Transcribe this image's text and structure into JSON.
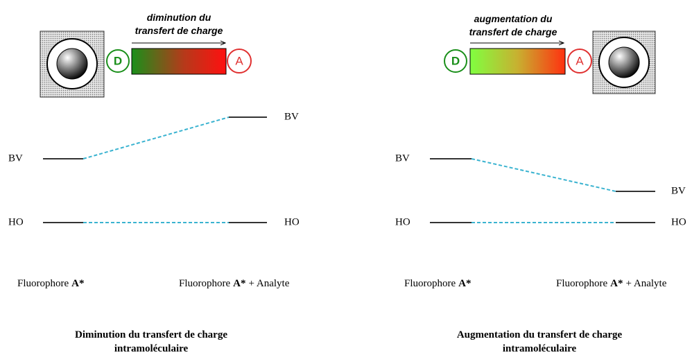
{
  "panels": [
    {
      "arrow_label": [
        "diminution du",
        "transfert de charge"
      ],
      "donor": "D",
      "acceptor": "A",
      "levels": {
        "left_bv": "BV",
        "right_bv": "BV",
        "left_ho": "HO",
        "right_ho": "HO"
      },
      "left_label": {
        "text": "Fluorophore",
        "bold": "A*"
      },
      "right_label": {
        "text": "Fluorophore",
        "bold": "A*",
        "suffix": "+ Analyte"
      },
      "caption": [
        "Diminution du transfert de charge",
        "intramoléculaire"
      ]
    },
    {
      "arrow_label": [
        "augmentation du",
        "transfert de charge"
      ],
      "donor": "D",
      "acceptor": "A",
      "levels": {
        "left_bv": "BV",
        "right_bv": "BV",
        "left_ho": "HO",
        "right_ho": "HO"
      },
      "left_label": {
        "text": "Fluorophore",
        "bold": "A*"
      },
      "right_label": {
        "text": "Fluorophore",
        "bold": "A*",
        "suffix": "+ Analyte"
      },
      "caption": [
        "Augmentation du transfert de charge",
        "intramoléculaire"
      ]
    }
  ]
}
